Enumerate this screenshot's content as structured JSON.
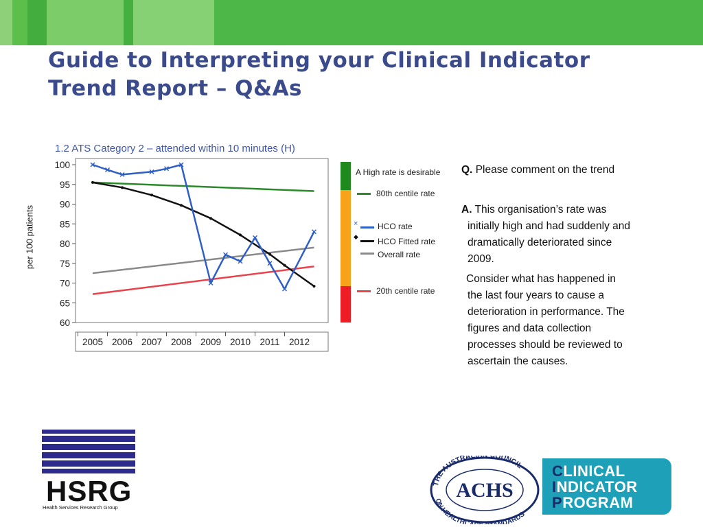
{
  "slide": {
    "title_line1": "Guide to Interpreting your Clinical Indicator",
    "title_line2": "Trend Report – Q&As"
  },
  "colors": {
    "banner_green": "#4db848",
    "title_blue": "#3a4a8a",
    "hco_rate_blue": "#2f5fc4",
    "fitted_black": "#111111",
    "overall_grey": "#8a8a8a",
    "centile80_green": "#2a8a2a",
    "centile20_red": "#e8424a"
  },
  "chart_data": {
    "type": "line",
    "title": "1.2 ATS Category 2 – attended within 10 minutes (H)",
    "ylabel": "per 100 patients",
    "xlabel": "",
    "ylim": [
      60,
      100
    ],
    "yticks": [
      "100",
      "95",
      "90",
      "85",
      "80",
      "75",
      "70",
      "65",
      "60"
    ],
    "xticks": [
      "2005",
      "2006",
      "2007",
      "2008",
      "2009",
      "2010",
      "2011",
      "2012"
    ],
    "series": [
      {
        "name": "HCO rate",
        "x": [
          2005.0,
          2005.5,
          2006.0,
          2007.0,
          2007.5,
          2008.0,
          2009.0,
          2009.5,
          2010.0,
          2010.5,
          2011.0,
          2011.5,
          2012.5
        ],
        "values": [
          100,
          98.7,
          97.5,
          98.2,
          99,
          100,
          70,
          77.2,
          75.5,
          81.5,
          75,
          68.5,
          83
        ]
      },
      {
        "name": "HCO Fitted rate",
        "x": [
          2005.0,
          2006.0,
          2007.0,
          2008.0,
          2009.0,
          2010.0,
          2011.0,
          2011.5,
          2012.5
        ],
        "values": [
          95.5,
          94.2,
          92.3,
          89.7,
          86.4,
          82.2,
          77.3,
          74.5,
          69.2
        ]
      },
      {
        "name": "Overall rate",
        "x": [
          2005.0,
          2012.5
        ],
        "values": [
          72.5,
          79
        ]
      },
      {
        "name": "80th centile rate",
        "x": [
          2005.0,
          2012.5
        ],
        "values": [
          95.5,
          93.3
        ]
      },
      {
        "name": "20th centile rate",
        "x": [
          2005.0,
          2012.5
        ],
        "values": [
          67.2,
          74.2
        ]
      }
    ],
    "legend_header": "A High rate is desirable",
    "legend": [
      {
        "label": "80th centile rate",
        "key": "centile80"
      },
      {
        "label": "HCO rate",
        "key": "hco"
      },
      {
        "label": "HCO Fitted rate",
        "key": "fitted"
      },
      {
        "label": "Overall rate",
        "key": "overall"
      },
      {
        "label": "20th centile rate",
        "key": "centile20"
      }
    ],
    "grid": false,
    "legend_position": "right"
  },
  "qa": {
    "q_label": "Q.",
    "q_text": "Please comment on the trend",
    "a_label": "A.",
    "a_text_lines": [
      "This organisation’s rate was",
      "initially high and had suddenly and",
      "dramatically deteriorated since",
      "2009."
    ],
    "consider_lines": [
      "Consider what has happened in",
      "the last four years to cause a",
      "deterioration in performance. The",
      "figures and data collection",
      "processes should be reviewed to",
      "ascertain the causes."
    ]
  },
  "logos": {
    "hsrg": "HSRG",
    "hsrg_sub": "Health Services Research Group",
    "achs": "ACHS",
    "achs_ring": "THE AUSTRALIAN COUNCIL ON HEALTHCARE STANDARDS",
    "cip": [
      "CLINICAL",
      "INDICATOR",
      "PROGRAM"
    ]
  }
}
